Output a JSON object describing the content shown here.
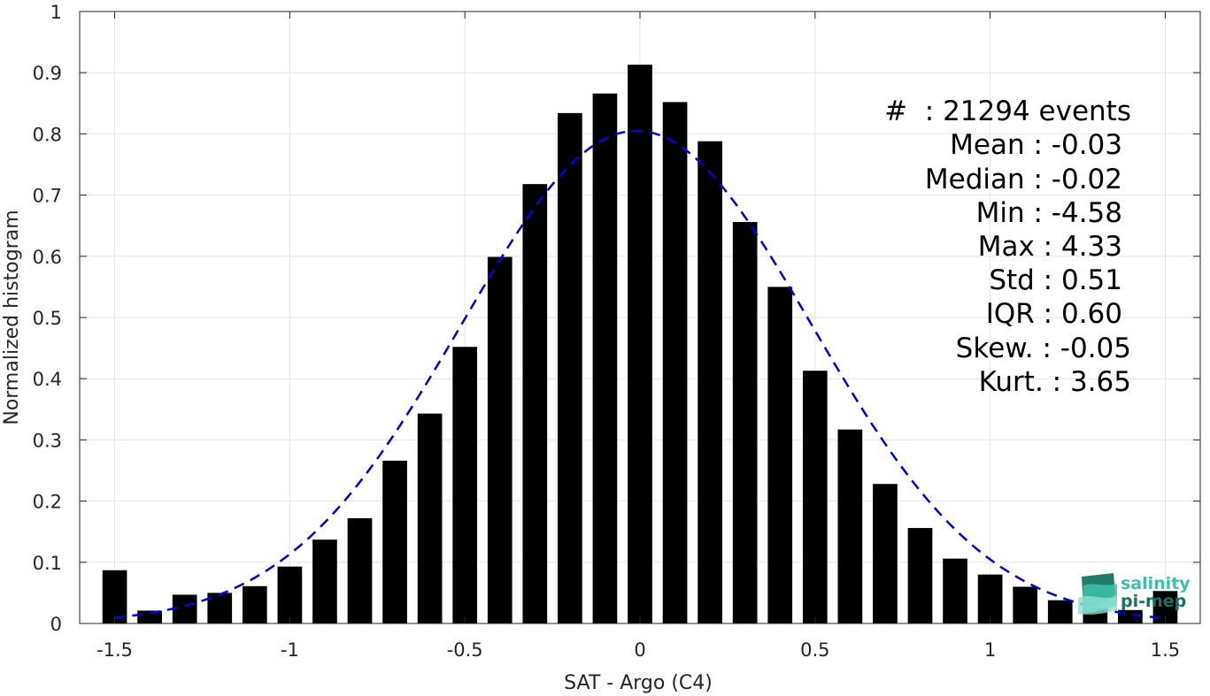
{
  "chart_data": {
    "type": "bar",
    "xlabel": "SAT - Argo (C4)",
    "ylabel": "Normalized histogram",
    "xlim": [
      -1.6,
      1.6
    ],
    "ylim": [
      0,
      1
    ],
    "grid": true,
    "xticks": [
      -1.5,
      -1,
      -0.5,
      0,
      0.5,
      1,
      1.5
    ],
    "xtick_labels": [
      "-1.5",
      "-1",
      "-0.5",
      "0",
      "0.5",
      "1",
      "1.5"
    ],
    "yticks": [
      0,
      0.1,
      0.2,
      0.3,
      0.4,
      0.5,
      0.6,
      0.7,
      0.8,
      0.9,
      1
    ],
    "ytick_labels": [
      "0",
      "0.1",
      "0.2",
      "0.3",
      "0.4",
      "0.5",
      "0.6",
      "0.7",
      "0.8",
      "0.9",
      "1"
    ],
    "bar_width": 0.07,
    "bar_color": "#000000",
    "bars": {
      "x": [
        -1.5,
        -1.4,
        -1.3,
        -1.2,
        -1.1,
        -1.0,
        -0.9,
        -0.8,
        -0.7,
        -0.6,
        -0.5,
        -0.4,
        -0.3,
        -0.2,
        -0.1,
        0.0,
        0.1,
        0.2,
        0.3,
        0.4,
        0.5,
        0.6,
        0.7,
        0.8,
        0.9,
        1.0,
        1.1,
        1.2,
        1.3,
        1.4,
        1.5
      ],
      "values": [
        0.087,
        0.021,
        0.047,
        0.05,
        0.061,
        0.093,
        0.137,
        0.172,
        0.266,
        0.343,
        0.452,
        0.599,
        0.718,
        0.834,
        0.866,
        0.913,
        0.852,
        0.788,
        0.656,
        0.55,
        0.413,
        0.317,
        0.228,
        0.156,
        0.106,
        0.08,
        0.06,
        0.038,
        0.025,
        0.022,
        0.053
      ]
    },
    "fit_curve": {
      "type": "gaussian",
      "style": "dashed",
      "color": "#0000dd",
      "mean": -0.01,
      "std": 0.5,
      "peak": 0.805,
      "x_range": [
        -1.5,
        1.5
      ]
    },
    "annotations": [
      "#  : 21294 events",
      "Mean : -0.03",
      "Median : -0.02",
      "Min : -4.58",
      "Max : 4.33",
      "Std : 0.51",
      "IQR : 0.60",
      "Skew. : -0.05",
      "Kurt. : 3.65"
    ]
  },
  "logo": {
    "line1": "salinity",
    "line2": "pi-mep",
    "color_light": "#3cc2a8",
    "color_dark": "#177264"
  }
}
